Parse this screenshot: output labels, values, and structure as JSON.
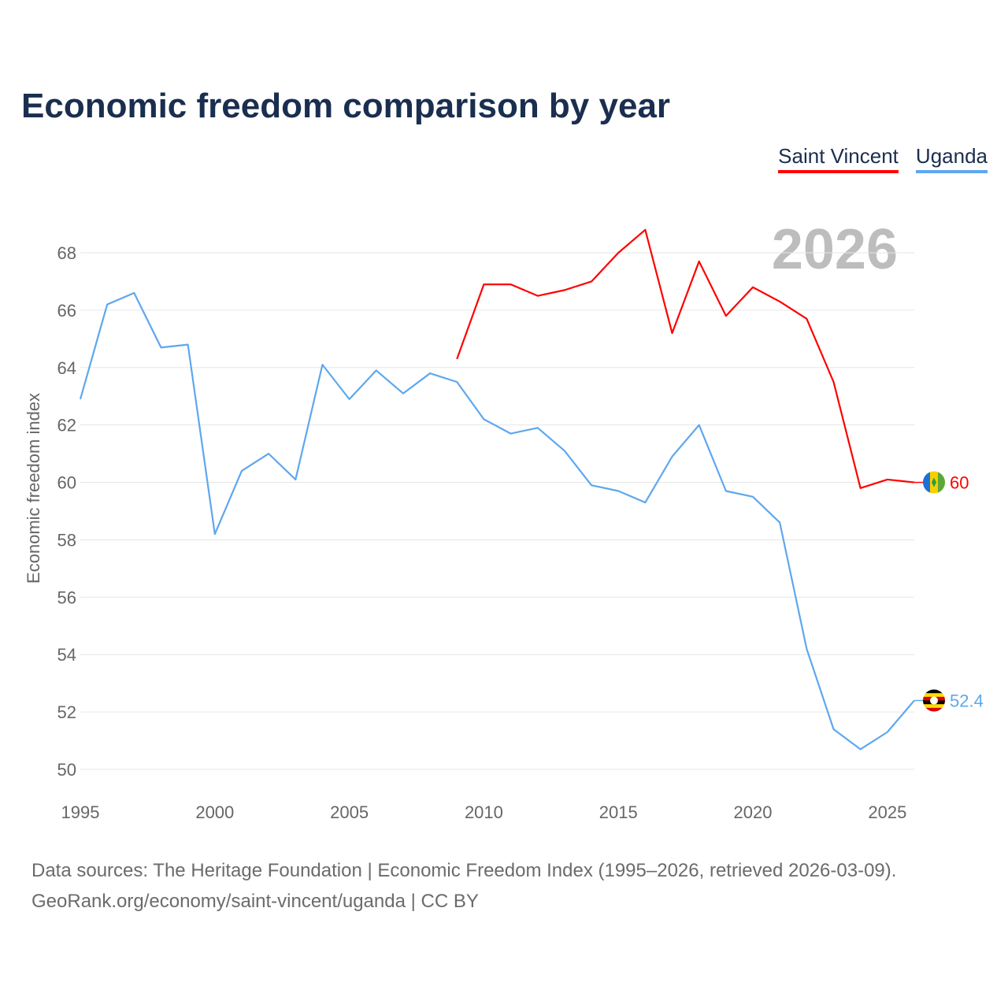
{
  "title": "Economic freedom comparison by year",
  "footer": {
    "line1": "Data sources: The Heritage Foundation | Economic Freedom Index (1995–2026, retrieved 2026-03-09).",
    "line2": "GeoRank.org/economy/saint-vincent/uganda | CC BY"
  },
  "chart_data": {
    "type": "line",
    "title": "Economic freedom comparison by year",
    "xlabel": "",
    "ylabel": "Economic freedom index",
    "watermark_year": "2026",
    "xlim": [
      1995,
      2026
    ],
    "ylim": [
      50,
      69
    ],
    "xticks": [
      "1995",
      "2000",
      "2005",
      "2010",
      "2015",
      "2020",
      "2025"
    ],
    "yticks": [
      "50",
      "52",
      "54",
      "56",
      "58",
      "60",
      "62",
      "64",
      "66",
      "68"
    ],
    "grid": true,
    "legend": "top-right",
    "series": [
      {
        "name": "Saint Vincent",
        "color": "#ff0000",
        "end_label": "60",
        "x": [
          2009,
          2010,
          2011,
          2012,
          2013,
          2014,
          2015,
          2016,
          2017,
          2018,
          2019,
          2020,
          2021,
          2022,
          2023,
          2024,
          2025,
          2026
        ],
        "values": [
          64.3,
          66.9,
          66.9,
          66.5,
          66.7,
          67.0,
          68.0,
          68.8,
          65.2,
          67.7,
          65.8,
          66.8,
          66.3,
          65.7,
          63.5,
          59.8,
          60.1,
          60.0
        ]
      },
      {
        "name": "Uganda",
        "color": "#5ea7ee",
        "end_label": "52.4",
        "x": [
          1995,
          1996,
          1997,
          1998,
          1999,
          2000,
          2001,
          2002,
          2003,
          2004,
          2005,
          2006,
          2007,
          2008,
          2009,
          2010,
          2011,
          2012,
          2013,
          2014,
          2015,
          2016,
          2017,
          2018,
          2019,
          2020,
          2021,
          2022,
          2023,
          2024,
          2025,
          2026
        ],
        "values": [
          62.9,
          66.2,
          66.6,
          64.7,
          64.8,
          58.2,
          60.4,
          61.0,
          60.1,
          64.1,
          62.9,
          63.9,
          63.1,
          63.8,
          63.5,
          62.2,
          61.7,
          61.9,
          61.1,
          59.9,
          59.7,
          59.3,
          60.9,
          62.0,
          59.7,
          59.5,
          58.6,
          54.2,
          51.4,
          50.7,
          51.3,
          52.4
        ]
      }
    ]
  }
}
